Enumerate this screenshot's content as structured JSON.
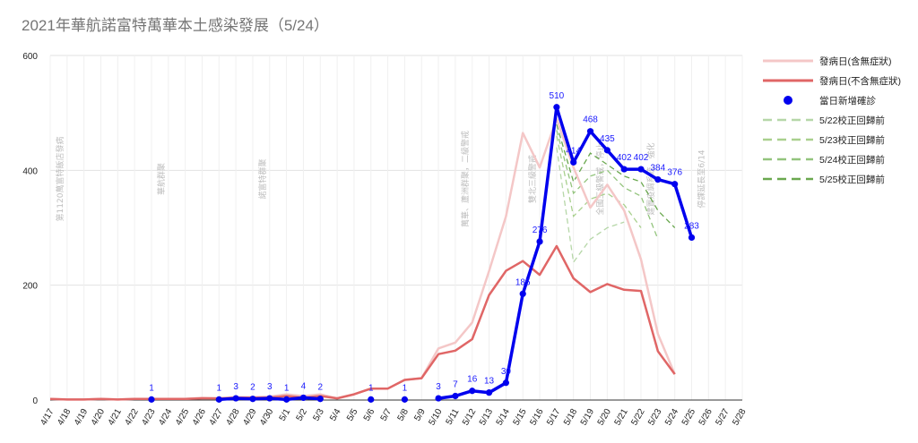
{
  "chart_data": {
    "type": "line",
    "title": "2021年華航諾富特萬華本土感染發展（5/24）",
    "ylim": [
      0,
      600
    ],
    "yticks": [
      0,
      200,
      400,
      600
    ],
    "categories": [
      "4/17",
      "4/18",
      "4/19",
      "4/20",
      "4/21",
      "4/22",
      "4/23",
      "4/24",
      "4/25",
      "4/26",
      "4/27",
      "4/28",
      "4/29",
      "4/30",
      "5/1",
      "5/2",
      "5/3",
      "5/4",
      "5/5",
      "5/6",
      "5/7",
      "5/8",
      "5/9",
      "5/10",
      "5/11",
      "5/12",
      "5/13",
      "5/14",
      "5/15",
      "5/16",
      "5/17",
      "5/18",
      "5/19",
      "5/20",
      "5/21",
      "5/22",
      "5/23",
      "5/24",
      "5/25",
      "5/26",
      "5/27",
      "5/28"
    ],
    "series": [
      {
        "name": "發病日(含無症狀)",
        "color": "#f4c7c7",
        "style": "thick-line",
        "values": [
          2,
          1,
          1,
          2,
          1,
          2,
          2,
          2,
          2,
          4,
          3,
          5,
          5,
          6,
          10,
          7,
          10,
          3,
          10,
          20,
          20,
          35,
          38,
          90,
          100,
          135,
          225,
          320,
          465,
          405,
          490,
          405,
          335,
          375,
          330,
          245,
          115,
          45,
          null,
          null,
          null,
          null
        ]
      },
      {
        "name": "發病日(不含無症狀)",
        "color": "#e06666",
        "style": "thick-line",
        "values": [
          2,
          1,
          1,
          2,
          1,
          2,
          2,
          2,
          2,
          3,
          3,
          4,
          4,
          4,
          7,
          4,
          7,
          3,
          10,
          20,
          20,
          35,
          38,
          80,
          86,
          106,
          183,
          225,
          242,
          218,
          268,
          212,
          188,
          202,
          192,
          190,
          85,
          45,
          null,
          null,
          null,
          null
        ]
      },
      {
        "name": "當日新增確診",
        "color": "#0000ee",
        "style": "line-markers",
        "values": [
          null,
          null,
          null,
          null,
          null,
          null,
          1,
          null,
          null,
          null,
          1,
          3,
          2,
          3,
          1,
          4,
          2,
          null,
          null,
          1,
          null,
          1,
          null,
          3,
          7,
          16,
          13,
          30,
          185,
          276,
          510,
          414,
          468,
          435,
          402,
          402,
          384,
          376,
          283,
          null,
          null,
          null
        ],
        "labels": [
          "",
          "",
          "",
          "",
          "",
          "",
          "1",
          "",
          "",
          "",
          "1",
          "3",
          "2",
          "3",
          "1",
          "4",
          "2",
          "",
          "",
          "1",
          "",
          "1",
          "",
          "3",
          "7",
          "16",
          "13",
          "30",
          "185",
          "276",
          "510",
          "414",
          "468",
          "435",
          "402",
          "402",
          "384",
          "376",
          "283",
          "",
          "",
          ""
        ]
      },
      {
        "name": "5/22校正回歸前",
        "color": "#b6d7a8",
        "style": "dashed",
        "values": [
          null,
          null,
          null,
          null,
          null,
          null,
          null,
          null,
          null,
          null,
          null,
          null,
          null,
          null,
          null,
          null,
          null,
          null,
          null,
          null,
          null,
          null,
          null,
          null,
          null,
          null,
          null,
          null,
          null,
          null,
          440,
          240,
          280,
          300,
          310,
          null,
          null,
          null,
          null,
          null,
          null,
          null
        ]
      },
      {
        "name": "5/23校正回歸前",
        "color": "#a9d08e",
        "style": "dashed",
        "values": [
          null,
          null,
          null,
          null,
          null,
          null,
          null,
          null,
          null,
          null,
          null,
          null,
          null,
          null,
          null,
          null,
          null,
          null,
          null,
          null,
          null,
          null,
          null,
          null,
          null,
          null,
          null,
          null,
          null,
          null,
          460,
          320,
          350,
          360,
          340,
          300,
          null,
          null,
          null,
          null,
          null,
          null
        ]
      },
      {
        "name": "5/24校正回歸前",
        "color": "#93c47d",
        "style": "dashed",
        "values": [
          null,
          null,
          null,
          null,
          null,
          null,
          null,
          null,
          null,
          null,
          null,
          null,
          null,
          null,
          null,
          null,
          null,
          null,
          null,
          null,
          null,
          null,
          null,
          null,
          null,
          null,
          null,
          null,
          null,
          null,
          470,
          360,
          390,
          400,
          370,
          355,
          280,
          null,
          null,
          null,
          null,
          null
        ]
      },
      {
        "name": "5/25校正回歸前",
        "color": "#6aa84f",
        "style": "dashed",
        "values": [
          null,
          null,
          null,
          null,
          null,
          null,
          null,
          null,
          null,
          null,
          null,
          null,
          null,
          null,
          null,
          null,
          null,
          null,
          null,
          null,
          null,
          null,
          null,
          null,
          null,
          null,
          null,
          null,
          null,
          null,
          480,
          380,
          430,
          410,
          390,
          380,
          330,
          300,
          null,
          null,
          null,
          null
        ]
      }
    ],
    "annotations": [
      {
        "x": "4/17",
        "text": "第1120萬富特飯店發病"
      },
      {
        "x": "4/23",
        "text": "華航群聚"
      },
      {
        "x": "4/29",
        "text": "諾富特群聚"
      },
      {
        "x": "5/11",
        "text": "萬華、蘆洲群聚，二級警戒"
      },
      {
        "x": "5/15",
        "text": "雙北三級警戒"
      },
      {
        "x": "5/19",
        "text": "全國三級警戒，停止"
      },
      {
        "x": "5/22",
        "text": "建置疫調系統，強化"
      },
      {
        "x": "5/25",
        "text": "停課延長至6/14"
      }
    ],
    "grid": true,
    "legend_position": "right"
  }
}
